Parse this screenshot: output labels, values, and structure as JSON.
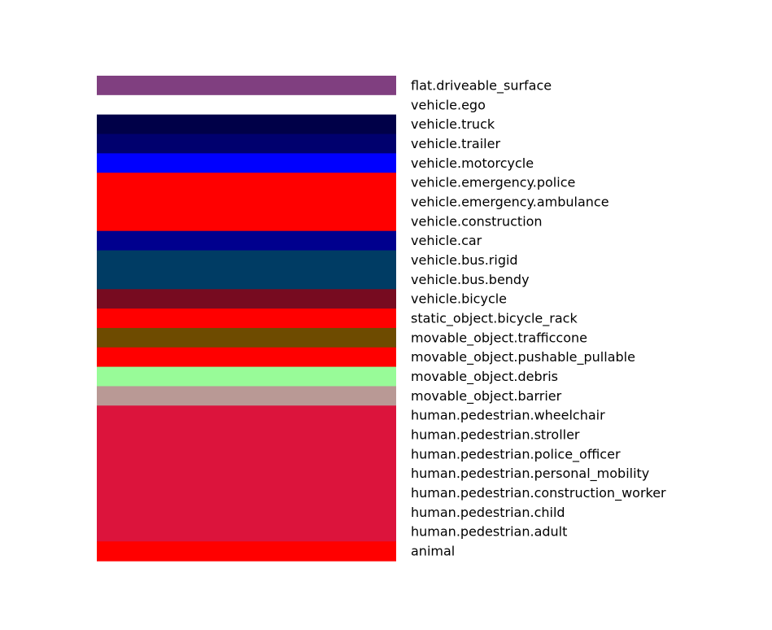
{
  "chart_data": {
    "type": "table",
    "title": "",
    "rows": [
      {
        "label": "flat.driveable_surface",
        "color": "#803f80"
      },
      {
        "label": "vehicle.ego",
        "color": "#ffffff"
      },
      {
        "label": "vehicle.truck",
        "color": "#000048"
      },
      {
        "label": "vehicle.trailer",
        "color": "#00006e"
      },
      {
        "label": "vehicle.motorcycle",
        "color": "#0000ff"
      },
      {
        "label": "vehicle.emergency.police",
        "color": "#ff0000"
      },
      {
        "label": "vehicle.emergency.ambulance",
        "color": "#ff0000"
      },
      {
        "label": "vehicle.construction",
        "color": "#ff0000"
      },
      {
        "label": "vehicle.car",
        "color": "#00008e"
      },
      {
        "label": "vehicle.bus.rigid",
        "color": "#003c64"
      },
      {
        "label": "vehicle.bus.bendy",
        "color": "#003c64"
      },
      {
        "label": "vehicle.bicycle",
        "color": "#770b20"
      },
      {
        "label": "static_object.bicycle_rack",
        "color": "#ff0000"
      },
      {
        "label": "movable_object.trafficcone",
        "color": "#6e4b00"
      },
      {
        "label": "movable_object.pushable_pullable",
        "color": "#ff0000"
      },
      {
        "label": "movable_object.debris",
        "color": "#98fb98"
      },
      {
        "label": "movable_object.barrier",
        "color": "#b99995"
      },
      {
        "label": "human.pedestrian.wheelchair",
        "color": "#dc143c"
      },
      {
        "label": "human.pedestrian.stroller",
        "color": "#dc143c"
      },
      {
        "label": "human.pedestrian.police_officer",
        "color": "#dc143c"
      },
      {
        "label": "human.pedestrian.personal_mobility",
        "color": "#dc143c"
      },
      {
        "label": "human.pedestrian.construction_worker",
        "color": "#dc143c"
      },
      {
        "label": "human.pedestrian.child",
        "color": "#dc143c"
      },
      {
        "label": "human.pedestrian.adult",
        "color": "#dc143c"
      },
      {
        "label": "animal",
        "color": "#ff0000"
      }
    ]
  }
}
